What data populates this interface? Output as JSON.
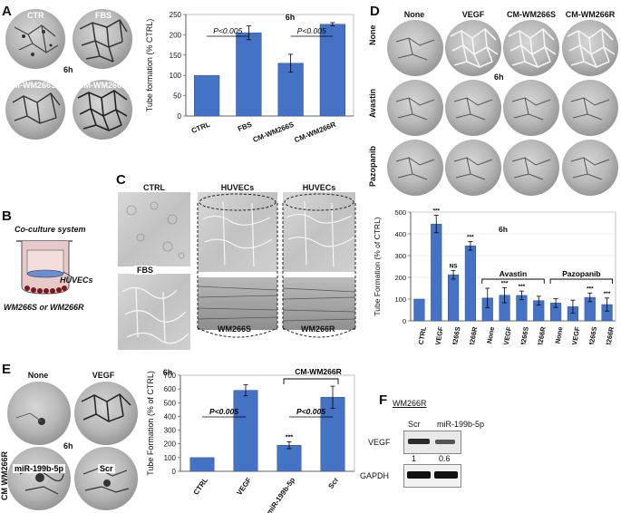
{
  "panels": {
    "A": "A",
    "B": "B",
    "C": "C",
    "D": "D",
    "E": "E",
    "F": "F"
  },
  "panelA": {
    "micro_labels": [
      "CTR",
      "FBS",
      "CM-WM266S",
      "CM-WM266R"
    ],
    "time": "6h"
  },
  "panelB": {
    "title": "Co-culture system",
    "cells": "HUVECs",
    "bottom": "WM266S or WM266R"
  },
  "panelC": {
    "col_labels": [
      "CTRL",
      "HUVECs",
      "HUVECs"
    ],
    "row2_left": "FBS",
    "bottom_labels": [
      "WM266S",
      "WM266R"
    ]
  },
  "panelD": {
    "col_labels": [
      "None",
      "VEGF",
      "CM-WM266S",
      "CM-WM266R"
    ],
    "row_labels": [
      "None",
      "Avastin",
      "Pazopanib"
    ],
    "time": "6h"
  },
  "panelE": {
    "micro_labels": [
      "None",
      "VEGF",
      "miR-199b-5p",
      "Scr"
    ],
    "side_label": "CM WM266R",
    "time": "6h"
  },
  "panelF": {
    "header": "WM266R",
    "lanes": [
      "Scr",
      "miR-199b-5p"
    ],
    "rows": [
      "VEGF",
      "GAPDH"
    ],
    "quant": [
      "1",
      "0.6"
    ]
  },
  "chart_data": [
    {
      "id": "A",
      "type": "bar",
      "title": "6h",
      "ylabel": "Tube formation (% CTRL)",
      "ylim": [
        0,
        250
      ],
      "yticks": [
        0,
        50,
        100,
        150,
        200,
        250
      ],
      "categories": [
        "CTRL",
        "FBS",
        "CM-WM266S",
        "CM-WM266R"
      ],
      "values": [
        100,
        205,
        130,
        226
      ],
      "errors": [
        0,
        17,
        22,
        4
      ],
      "annotations": [
        "P<0.005",
        "P<0.005"
      ],
      "color": "#4472c4"
    },
    {
      "id": "D",
      "type": "bar",
      "title": "6h",
      "ylabel": "Tube Formation (% of CTRL)",
      "ylim": [
        0,
        500
      ],
      "yticks": [
        0,
        100,
        200,
        300,
        400,
        500
      ],
      "categories": [
        "CTRL",
        "VEGF",
        "CM-WM266S",
        "CM-WM266R",
        "None",
        "VEGF",
        "CM-WM266S",
        "CM-WM266R",
        "None",
        "VEGF",
        "CM-WM266S",
        "CM-WM266R"
      ],
      "values": [
        100,
        445,
        212,
        345,
        105,
        118,
        117,
        93,
        82,
        65,
        108,
        75
      ],
      "errors": [
        0,
        40,
        20,
        20,
        45,
        35,
        20,
        20,
        20,
        30,
        20,
        30
      ],
      "stars": [
        "",
        "***",
        "NS",
        "***",
        "",
        "***",
        "***",
        "",
        "",
        "",
        "***",
        "***"
      ],
      "groups": [
        "Avastin",
        "Pazopanib"
      ],
      "color": "#4472c4"
    },
    {
      "id": "E",
      "type": "bar",
      "title": "6h",
      "ylabel": "Tube Formation (% of CTRL)",
      "ylim": [
        0,
        700
      ],
      "yticks": [
        0,
        100,
        200,
        300,
        400,
        500,
        600,
        700
      ],
      "categories": [
        "CTRL",
        "VEGF",
        "miR-199b-5p",
        "Scr"
      ],
      "values": [
        100,
        590,
        190,
        540
      ],
      "errors": [
        0,
        40,
        25,
        80
      ],
      "stars": [
        "",
        "",
        "***",
        ""
      ],
      "annotations": [
        "P<0.005",
        "P<0.005"
      ],
      "group": "CM-WM266R",
      "color": "#4472c4"
    }
  ]
}
